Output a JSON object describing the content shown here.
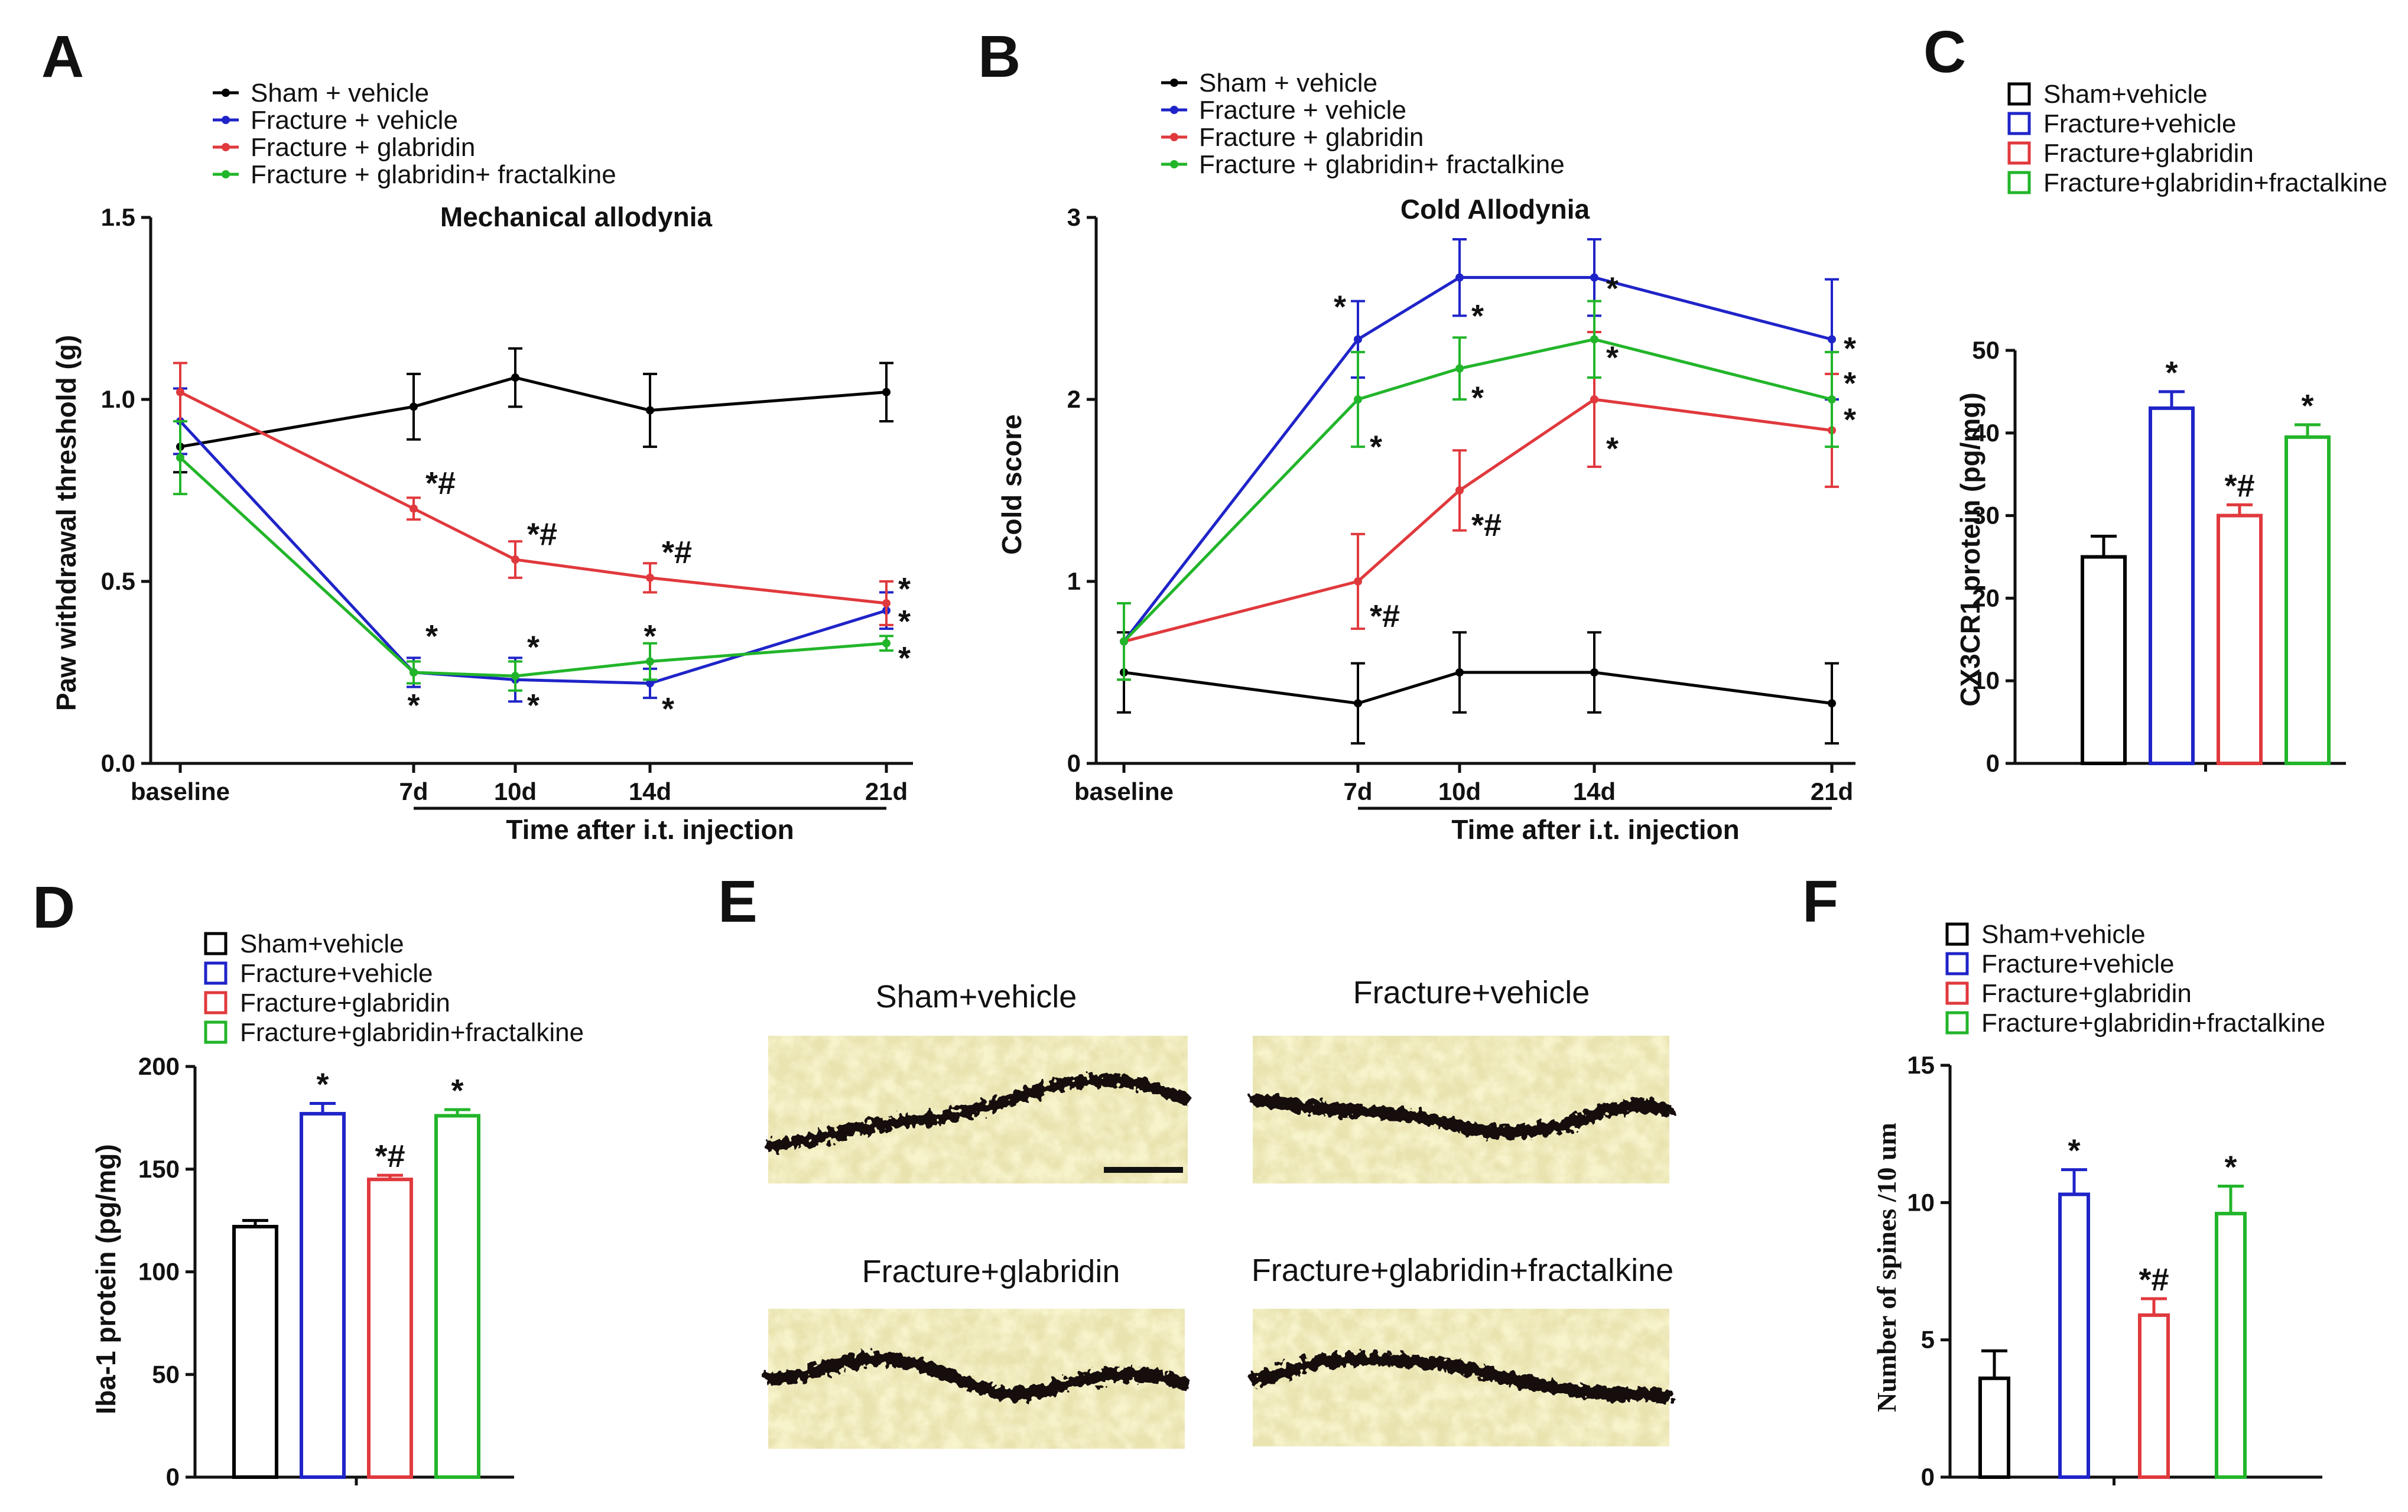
{
  "colors": {
    "sham": "#000000",
    "fracture_vehicle": "#1f24c8",
    "fracture_glabridin": "#e0393d",
    "fracture_glabridin_fractalkine": "#22b52a"
  },
  "panels": {
    "A": {
      "letter": "A"
    },
    "B": {
      "letter": "B"
    },
    "C": {
      "letter": "C"
    },
    "D": {
      "letter": "D"
    },
    "E": {
      "letter": "E"
    },
    "F": {
      "letter": "F"
    }
  },
  "chart_data": [
    {
      "id": "A",
      "type": "line",
      "title": "Mechanical allodynia",
      "ylabel": "Paw withdrawal threshold (g)",
      "xlabel": "Time after i.t. injection",
      "x_categories": [
        "baseline",
        "7d",
        "10d",
        "14d",
        "21d"
      ],
      "yticks": [
        "0.0",
        "0.5",
        "1.0",
        "1.5"
      ],
      "ylim": [
        0,
        1.5
      ],
      "legend_position": "top-left",
      "series": [
        {
          "name": "Sham + vehicle",
          "color_key": "sham",
          "values": [
            0.87,
            0.98,
            1.06,
            0.97,
            1.02
          ],
          "errors": [
            0.07,
            0.09,
            0.08,
            0.1,
            0.08
          ]
        },
        {
          "name": "Fracture + vehicle",
          "color_key": "fracture_vehicle",
          "values": [
            0.94,
            0.25,
            0.23,
            0.22,
            0.42
          ],
          "errors": [
            0.09,
            0.04,
            0.06,
            0.04,
            0.05
          ]
        },
        {
          "name": "Fracture + glabridin",
          "color_key": "fracture_glabridin",
          "values": [
            1.02,
            0.7,
            0.56,
            0.51,
            0.44
          ],
          "errors": [
            0.08,
            0.03,
            0.05,
            0.04,
            0.06
          ]
        },
        {
          "name": "Fracture + glabridin+ fractalkine",
          "color_key": "fracture_glabridin_fractalkine",
          "values": [
            0.84,
            0.25,
            0.24,
            0.28,
            0.33
          ],
          "errors": [
            0.1,
            0.03,
            0.04,
            0.05,
            0.02
          ]
        }
      ],
      "annotations": [
        {
          "text": "*#",
          "x": "7d",
          "y": 0.74,
          "align": "right"
        },
        {
          "text": "*#",
          "x": "10d",
          "y": 0.6,
          "align": "right"
        },
        {
          "text": "*#",
          "x": "14d",
          "y": 0.55,
          "align": "right"
        },
        {
          "text": "*",
          "x": "7d",
          "y": 0.32,
          "align": "right"
        },
        {
          "text": "*",
          "x": "10d",
          "y": 0.29,
          "align": "right"
        },
        {
          "text": "*",
          "x": "14d",
          "y": 0.32,
          "align": "center"
        },
        {
          "text": "*",
          "x": "7d",
          "y": 0.13,
          "align": "center"
        },
        {
          "text": "*",
          "x": "10d",
          "y": 0.13,
          "align": "right"
        },
        {
          "text": "*",
          "x": "14d",
          "y": 0.12,
          "align": "right"
        },
        {
          "text": "*",
          "x": "21d",
          "y": 0.45,
          "align": "right"
        },
        {
          "text": "*",
          "x": "21d",
          "y": 0.36,
          "align": "right"
        },
        {
          "text": "*",
          "x": "21d",
          "y": 0.26,
          "align": "right"
        }
      ]
    },
    {
      "id": "B",
      "type": "line",
      "title": "Cold Allodynia",
      "ylabel": "Cold score",
      "xlabel": "Time after i.t. injection",
      "x_categories": [
        "baseline",
        "7d",
        "10d",
        "14d",
        "21d"
      ],
      "yticks": [
        "0",
        "1",
        "2",
        "3"
      ],
      "ylim": [
        0,
        3
      ],
      "legend_position": "top-left",
      "series": [
        {
          "name": "Sham + vehicle",
          "color_key": "sham",
          "values": [
            0.5,
            0.33,
            0.5,
            0.5,
            0.33
          ],
          "errors": [
            0.22,
            0.22,
            0.22,
            0.22,
            0.22
          ]
        },
        {
          "name": "Fracture + vehicle",
          "color_key": "fracture_vehicle",
          "values": [
            0.67,
            2.33,
            2.67,
            2.67,
            2.33
          ],
          "errors": [
            0.21,
            0.21,
            0.21,
            0.21,
            0.33
          ]
        },
        {
          "name": "Fracture + glabridin",
          "color_key": "fracture_glabridin",
          "values": [
            0.67,
            1.0,
            1.5,
            2.0,
            1.83
          ],
          "errors": [
            0.21,
            0.26,
            0.22,
            0.37,
            0.31
          ]
        },
        {
          "name": "Fracture + glabridin+ fractalkine",
          "color_key": "fracture_glabridin_fractalkine",
          "values": [
            0.67,
            2.0,
            2.17,
            2.33,
            2.0
          ],
          "errors": [
            0.21,
            0.26,
            0.17,
            0.21,
            0.26
          ]
        }
      ],
      "annotations": [
        {
          "text": "*",
          "x": "7d",
          "y": 2.45,
          "align": "left"
        },
        {
          "text": "*",
          "x": "10d",
          "y": 2.4,
          "align": "right"
        },
        {
          "text": "*",
          "x": "14d",
          "y": 2.55,
          "align": "right"
        },
        {
          "text": "*",
          "x": "10d",
          "y": 1.95,
          "align": "right"
        },
        {
          "text": "*",
          "x": "14d",
          "y": 2.17,
          "align": "right"
        },
        {
          "text": "*",
          "x": "7d",
          "y": 1.68,
          "align": "right"
        },
        {
          "text": "*",
          "x": "14d",
          "y": 1.67,
          "align": "right"
        },
        {
          "text": "*#",
          "x": "10d",
          "y": 1.25,
          "align": "right"
        },
        {
          "text": "*#",
          "x": "7d",
          "y": 0.75,
          "align": "right"
        },
        {
          "text": "*",
          "x": "21d",
          "y": 2.22,
          "align": "right"
        },
        {
          "text": "*",
          "x": "21d",
          "y": 2.03,
          "align": "right"
        },
        {
          "text": "*",
          "x": "21d",
          "y": 1.83,
          "align": "right"
        }
      ]
    },
    {
      "id": "C",
      "type": "bar",
      "ylabel": "CX3CR1 protein (pg/mg)",
      "categories": [
        "Sham+vehicle",
        "Fracture+vehicle",
        "Fracture+glabridin",
        "Fracture+glabridin+fractalkine"
      ],
      "color_keys": [
        "sham",
        "fracture_vehicle",
        "fracture_glabridin",
        "fracture_glabridin_fractalkine"
      ],
      "values": [
        25,
        43,
        30,
        39.5
      ],
      "errors": [
        2.5,
        2.0,
        1.3,
        1.5
      ],
      "marks": [
        "",
        "*",
        "*#",
        "*"
      ],
      "yticks": [
        "0",
        "10",
        "20",
        "30",
        "40",
        "50"
      ],
      "ylim": [
        0,
        50
      ],
      "legend_position": "top"
    },
    {
      "id": "D",
      "type": "bar",
      "ylabel": "Iba-1 protein (pg/mg)",
      "categories": [
        "Sham+vehicle",
        "Fracture+vehicle",
        "Fracture+glabridin",
        "Fracture+glabridin+fractalkine"
      ],
      "color_keys": [
        "sham",
        "fracture_vehicle",
        "fracture_glabridin",
        "fracture_glabridin_fractalkine"
      ],
      "values": [
        122,
        177,
        145,
        176
      ],
      "errors": [
        3,
        5,
        2,
        3
      ],
      "marks": [
        "",
        "*",
        "*#",
        "*"
      ],
      "yticks": [
        "0",
        "50",
        "100",
        "150",
        "200"
      ],
      "ylim": [
        0,
        200
      ],
      "legend_position": "top"
    },
    {
      "id": "F",
      "type": "bar",
      "ylabel": "Number of spines /10 um",
      "categories": [
        "Sham+vehicle",
        "Fracture+vehicle",
        "Fracture+glabridin",
        "Fracture+glabridin+fractalkine"
      ],
      "color_keys": [
        "sham",
        "fracture_vehicle",
        "fracture_glabridin",
        "fracture_glabridin_fractalkine"
      ],
      "values": [
        3.6,
        10.3,
        5.9,
        9.6
      ],
      "errors": [
        1.0,
        0.9,
        0.6,
        1.0
      ],
      "marks": [
        "",
        "*",
        "*#",
        "*"
      ],
      "yticks": [
        "0",
        "5",
        "10",
        "15"
      ],
      "ylim": [
        0,
        15
      ],
      "legend_position": "top"
    }
  ],
  "images": {
    "labels": [
      "Sham+vehicle",
      "Fracture+vehicle",
      "Fracture+glabridin",
      "Fracture+glabridin+fractalkine"
    ]
  }
}
